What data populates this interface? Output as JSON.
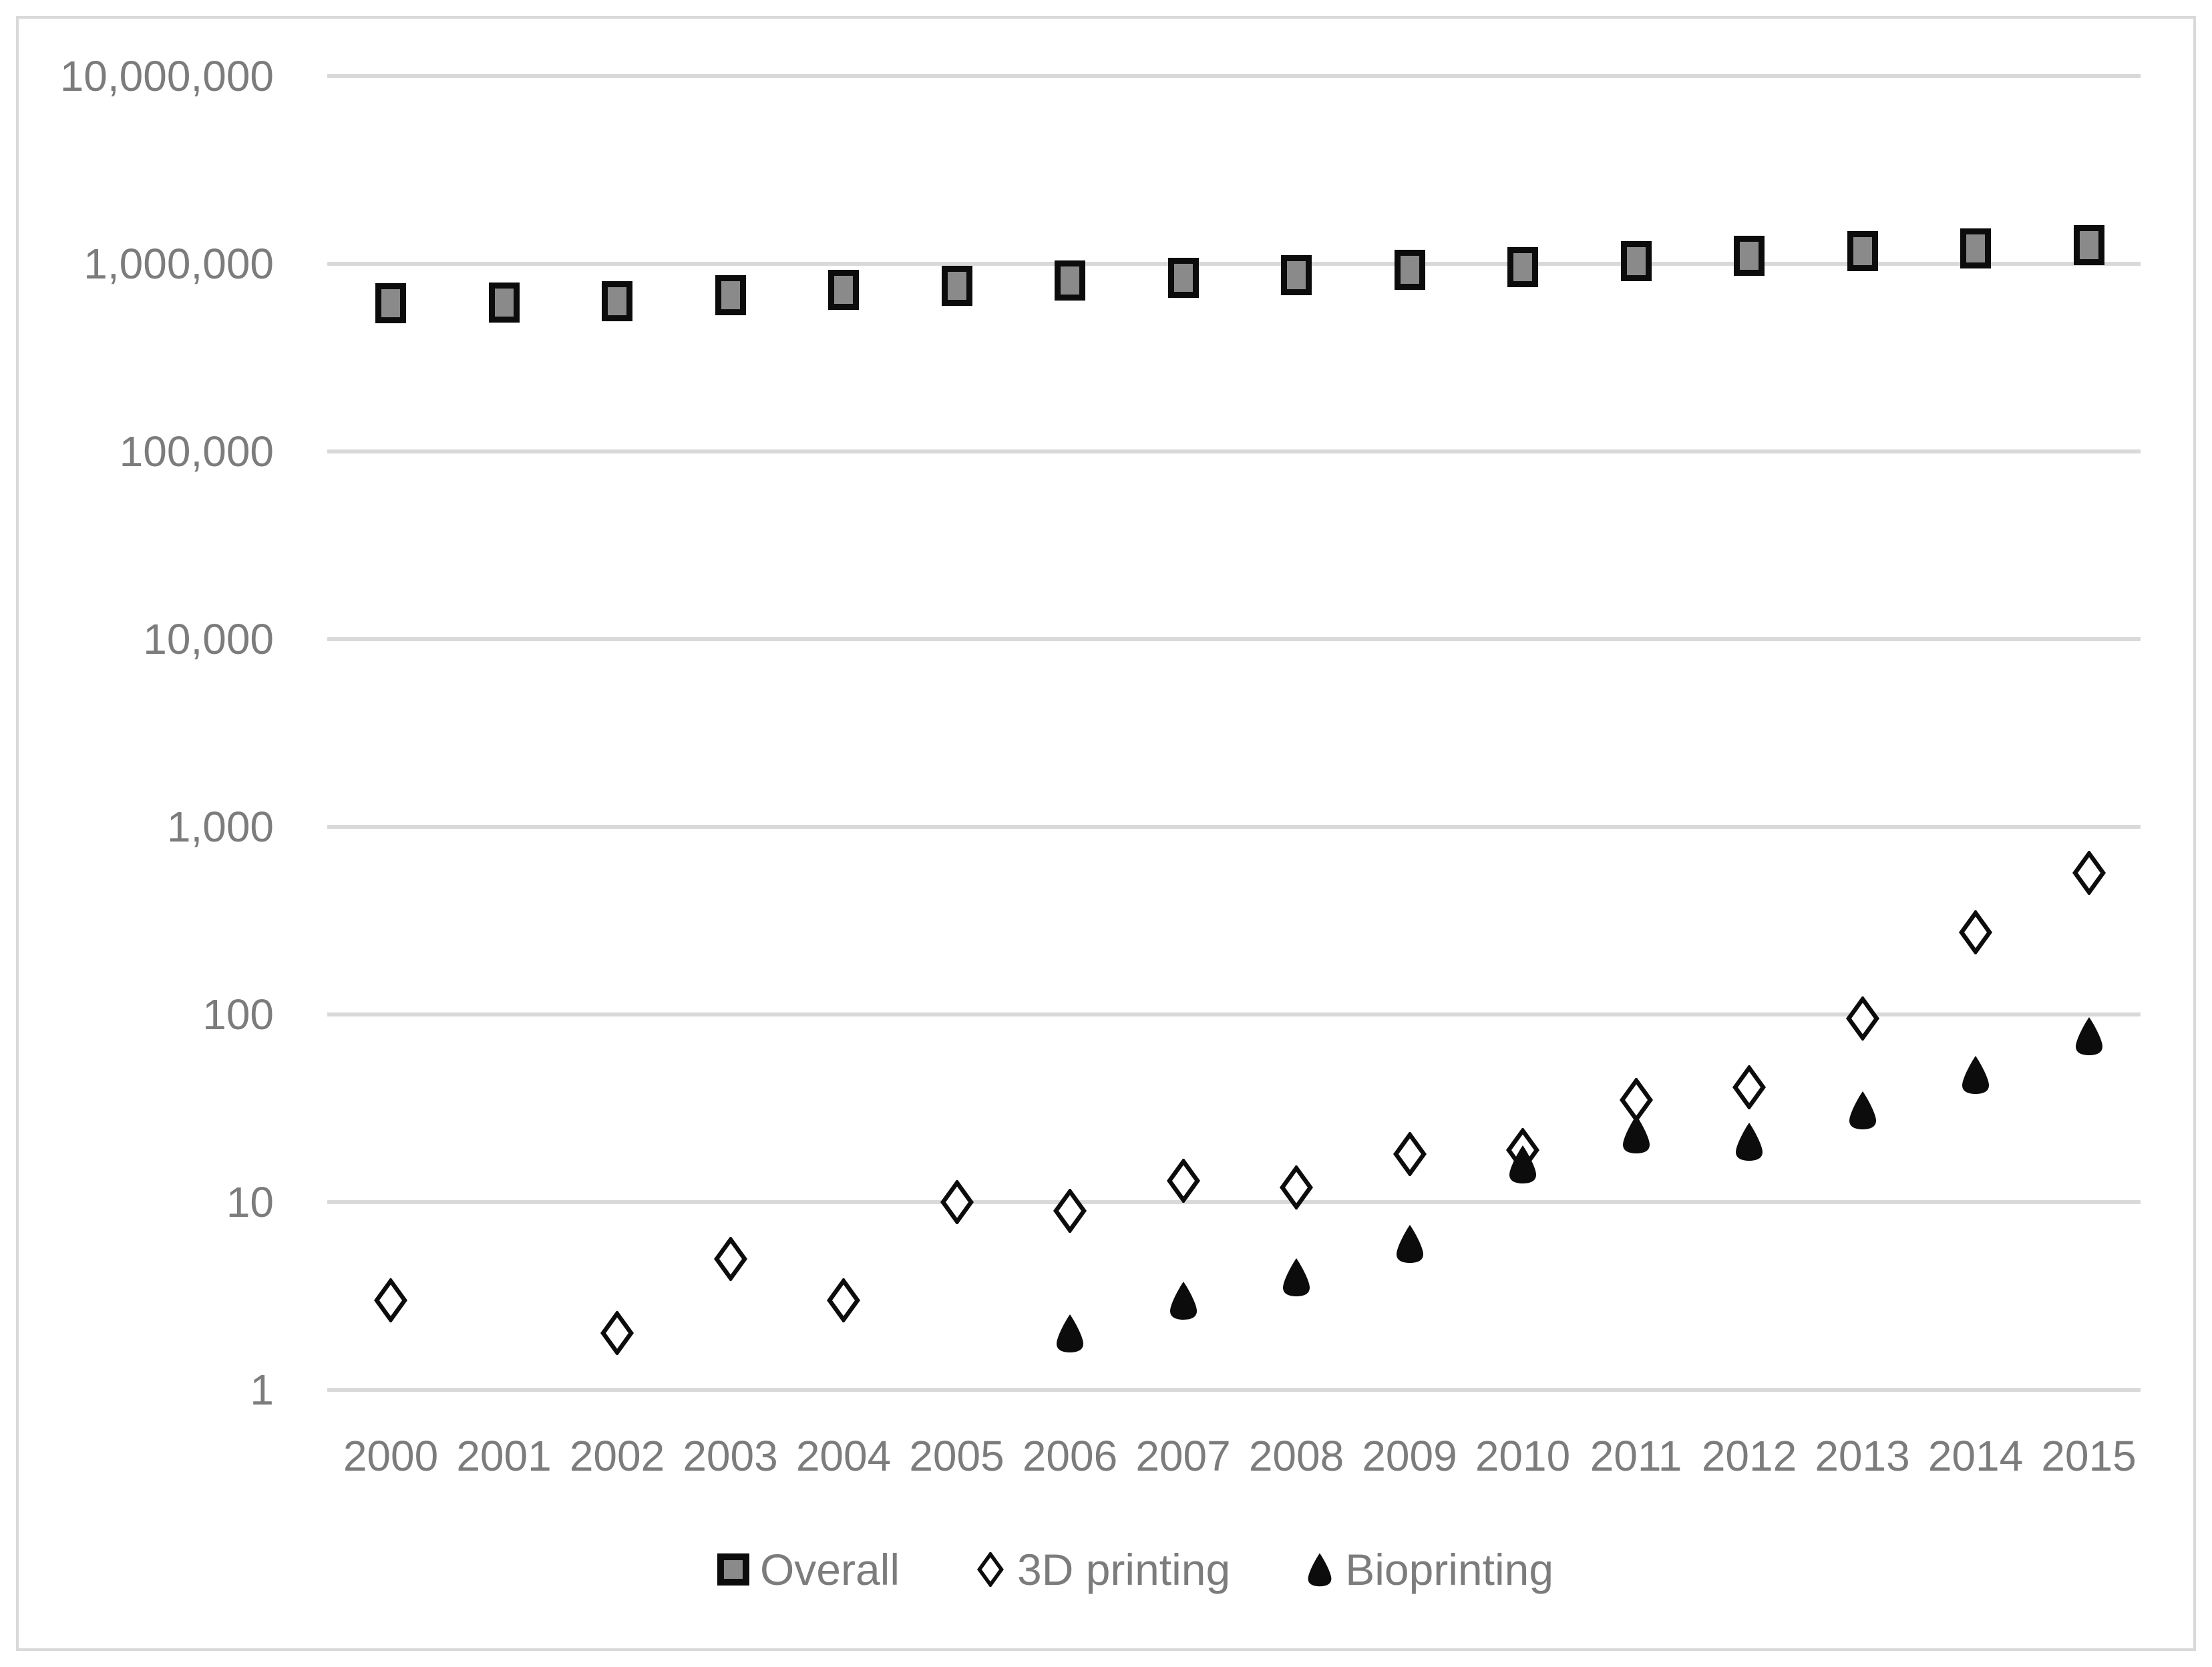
{
  "chart_data": {
    "type": "scatter",
    "title": "",
    "xlabel": "",
    "ylabel": "",
    "x_categories": [
      "2000",
      "2001",
      "2002",
      "2003",
      "2004",
      "2005",
      "2006",
      "2007",
      "2008",
      "2009",
      "2010",
      "2011",
      "2012",
      "2013",
      "2014",
      "2015"
    ],
    "y_axis": {
      "scale": "log",
      "min": 1,
      "max": 10000000,
      "tick_labels": [
        "10,000,000",
        "1,000,000",
        "100,000",
        "10,000",
        "1,000",
        "100",
        "10",
        "1"
      ]
    },
    "grid": "horizontal",
    "legend_position": "bottom",
    "series": [
      {
        "name": "Overall",
        "marker": "square",
        "fill": "#8a8a8a",
        "stroke": "#0c0c0c",
        "values": [
          615000,
          620000,
          630000,
          680000,
          725000,
          765000,
          815000,
          840000,
          870000,
          930000,
          960000,
          1030000,
          1100000,
          1170000,
          1210000,
          1260000
        ]
      },
      {
        "name": "3D printing",
        "marker": "diamond",
        "fill": "#ffffff",
        "stroke": "#0c0c0c",
        "values": [
          3,
          null,
          2,
          5,
          3,
          10,
          9,
          13,
          12,
          18,
          19,
          35,
          41,
          95,
          275,
          570
        ]
      },
      {
        "name": "Bioprinting",
        "marker": "teardrop",
        "fill": "#0c0c0c",
        "stroke": "#0c0c0c",
        "values": [
          null,
          null,
          null,
          null,
          null,
          null,
          2,
          3,
          4,
          6,
          16,
          23,
          21,
          31,
          48,
          77
        ]
      }
    ]
  },
  "colors": {
    "axis_text": "#7c7c7c",
    "gridline": "#d9d9d9",
    "border": "#d9d9d9",
    "background": "#ffffff"
  }
}
